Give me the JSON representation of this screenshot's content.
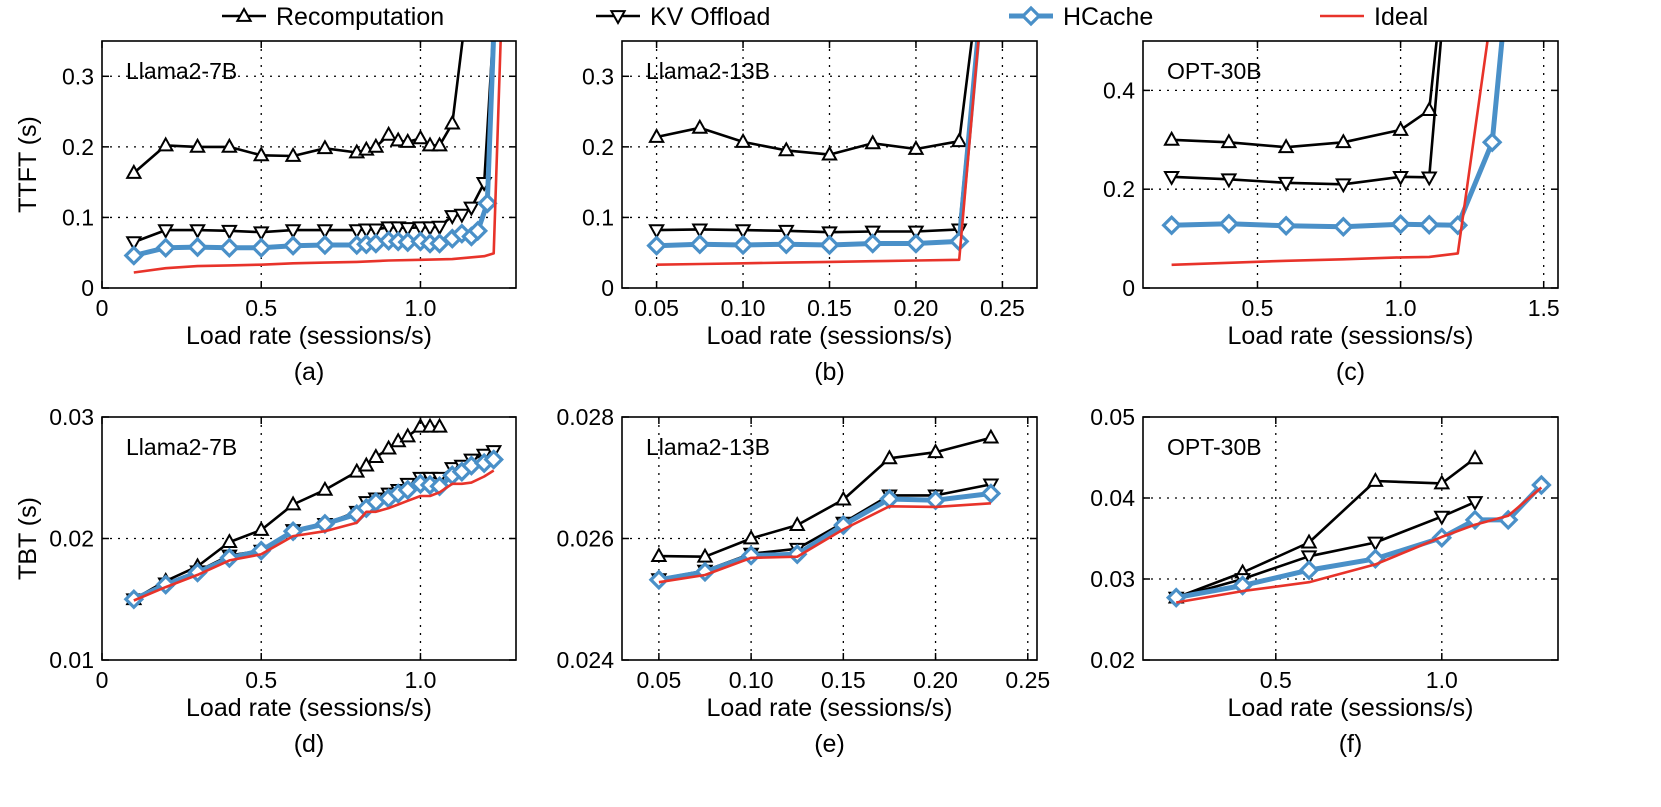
{
  "legend": {
    "entries": [
      {
        "label": "Recomputation",
        "color": "#000000",
        "marker": "triangle-up"
      },
      {
        "label": "KV Offload",
        "color": "#000000",
        "marker": "triangle-down"
      },
      {
        "label": "HCache",
        "color": "#4a90c8",
        "marker": "diamond"
      },
      {
        "label": "Ideal",
        "color": "#e8332a",
        "marker": "none"
      }
    ],
    "placement": "top"
  },
  "chart_data": [
    {
      "type": "line",
      "caption": "(a)",
      "title": "Llama2-7B",
      "xlabel": "Load rate (sessions/s)",
      "ylabel": "TTFT (s)",
      "xlim": [
        0,
        1.3
      ],
      "ylim": [
        0,
        0.35
      ],
      "xticks": [
        "0",
        "0.5",
        "1.0"
      ],
      "xtick_values": [
        0,
        0.5,
        1.0
      ],
      "yticks": [
        "0",
        "0.1",
        "0.2",
        "0.3"
      ],
      "ytick_values": [
        0,
        0.1,
        0.2,
        0.3
      ],
      "series": [
        {
          "name": "Recomputation",
          "x": [
            0.1,
            0.2,
            0.3,
            0.4,
            0.5,
            0.6,
            0.7,
            0.8,
            0.83,
            0.86,
            0.9,
            0.93,
            0.96,
            1.0,
            1.03,
            1.06,
            1.1,
            1.2
          ],
          "y": [
            0.163,
            0.202,
            0.2,
            0.2,
            0.188,
            0.187,
            0.198,
            0.192,
            0.196,
            0.2,
            0.217,
            0.209,
            0.207,
            0.212,
            0.202,
            0.202,
            0.233,
            0.6
          ]
        },
        {
          "name": "KV Offload",
          "x": [
            0.1,
            0.2,
            0.3,
            0.4,
            0.5,
            0.6,
            0.7,
            0.8,
            0.83,
            0.86,
            0.9,
            0.93,
            0.96,
            1.0,
            1.03,
            1.06,
            1.1,
            1.13,
            1.16,
            1.2,
            1.26
          ],
          "y": [
            0.065,
            0.082,
            0.082,
            0.081,
            0.079,
            0.082,
            0.082,
            0.082,
            0.083,
            0.083,
            0.086,
            0.086,
            0.085,
            0.086,
            0.086,
            0.087,
            0.102,
            0.104,
            0.114,
            0.149,
            0.6
          ]
        },
        {
          "name": "HCache",
          "x": [
            0.1,
            0.2,
            0.3,
            0.4,
            0.5,
            0.6,
            0.7,
            0.8,
            0.83,
            0.86,
            0.9,
            0.93,
            0.96,
            1.0,
            1.03,
            1.06,
            1.1,
            1.13,
            1.16,
            1.18,
            1.21,
            1.25
          ],
          "y": [
            0.046,
            0.057,
            0.058,
            0.057,
            0.057,
            0.06,
            0.061,
            0.061,
            0.062,
            0.063,
            0.067,
            0.066,
            0.065,
            0.066,
            0.063,
            0.063,
            0.07,
            0.077,
            0.073,
            0.081,
            0.12,
            0.6
          ]
        },
        {
          "name": "Ideal",
          "x": [
            0.1,
            0.2,
            0.3,
            0.4,
            0.5,
            0.6,
            0.7,
            0.8,
            0.9,
            1.0,
            1.1,
            1.2,
            1.23,
            1.27
          ],
          "y": [
            0.022,
            0.028,
            0.031,
            0.032,
            0.033,
            0.035,
            0.036,
            0.037,
            0.039,
            0.04,
            0.041,
            0.045,
            0.049,
            0.6
          ]
        }
      ]
    },
    {
      "type": "line",
      "caption": "(b)",
      "title": "Llama2-13B",
      "xlabel": "Load rate (sessions/s)",
      "ylabel": "",
      "xlim": [
        0.03,
        0.27
      ],
      "ylim": [
        0,
        0.35
      ],
      "xticks": [
        "0.05",
        "0.10",
        "0.15",
        "0.20",
        "0.25"
      ],
      "xtick_values": [
        0.05,
        0.1,
        0.15,
        0.2,
        0.25
      ],
      "yticks": [
        "0",
        "0.1",
        "0.2",
        "0.3"
      ],
      "ytick_values": [
        0,
        0.1,
        0.2,
        0.3
      ],
      "series": [
        {
          "name": "Recomputation",
          "x": [
            0.05,
            0.075,
            0.1,
            0.125,
            0.15,
            0.175,
            0.2,
            0.225,
            0.245
          ],
          "y": [
            0.214,
            0.227,
            0.207,
            0.195,
            0.189,
            0.205,
            0.197,
            0.208,
            0.6
          ]
        },
        {
          "name": "KV Offload",
          "x": [
            0.05,
            0.075,
            0.1,
            0.125,
            0.15,
            0.175,
            0.2,
            0.225,
            0.245
          ],
          "y": [
            0.082,
            0.083,
            0.082,
            0.081,
            0.079,
            0.08,
            0.08,
            0.083,
            0.6
          ]
        },
        {
          "name": "HCache",
          "x": [
            0.05,
            0.075,
            0.1,
            0.125,
            0.15,
            0.175,
            0.2,
            0.225,
            0.245
          ],
          "y": [
            0.06,
            0.062,
            0.061,
            0.062,
            0.061,
            0.063,
            0.063,
            0.066,
            0.6
          ]
        },
        {
          "name": "Ideal",
          "x": [
            0.05,
            0.075,
            0.1,
            0.125,
            0.15,
            0.175,
            0.2,
            0.225,
            0.245
          ],
          "y": [
            0.033,
            0.034,
            0.035,
            0.036,
            0.037,
            0.038,
            0.039,
            0.04,
            0.6
          ]
        }
      ]
    },
    {
      "type": "line",
      "caption": "(c)",
      "title": "OPT-30B",
      "xlabel": "Load rate (sessions/s)",
      "ylabel": "",
      "xlim": [
        0.1,
        1.55
      ],
      "ylim": [
        0,
        0.5
      ],
      "xticks": [
        "0.5",
        "1.0",
        "1.5"
      ],
      "xtick_values": [
        0.5,
        1.0,
        1.5
      ],
      "yticks": [
        "0",
        "0.2",
        "0.4"
      ],
      "ytick_values": [
        0,
        0.2,
        0.4
      ],
      "series": [
        {
          "name": "Recomputation",
          "x": [
            0.2,
            0.4,
            0.6,
            0.8,
            1.0,
            1.1,
            1.2
          ],
          "y": [
            0.3,
            0.295,
            0.285,
            0.295,
            0.32,
            0.36,
            0.9
          ]
        },
        {
          "name": "KV Offload",
          "x": [
            0.2,
            0.4,
            0.6,
            0.8,
            1.0,
            1.1,
            1.2
          ],
          "y": [
            0.225,
            0.22,
            0.213,
            0.21,
            0.225,
            0.224,
            0.9
          ]
        },
        {
          "name": "HCache",
          "x": [
            0.2,
            0.4,
            0.6,
            0.8,
            1.0,
            1.1,
            1.2,
            1.32,
            1.42
          ],
          "y": [
            0.127,
            0.13,
            0.126,
            0.124,
            0.129,
            0.128,
            0.127,
            0.295,
            0.9
          ]
        },
        {
          "name": "Ideal",
          "x": [
            0.2,
            0.4,
            0.6,
            0.8,
            1.0,
            1.1,
            1.2,
            1.4
          ],
          "y": [
            0.047,
            0.051,
            0.055,
            0.058,
            0.062,
            0.063,
            0.07,
            0.9
          ]
        }
      ]
    },
    {
      "type": "line",
      "caption": "(d)",
      "title": "Llama2-7B",
      "xlabel": "Load rate (sessions/s)",
      "ylabel": "TBT (s)",
      "xlim": [
        0,
        1.3
      ],
      "ylim": [
        0.01,
        0.03
      ],
      "xticks": [
        "0",
        "0.5",
        "1.0"
      ],
      "xtick_values": [
        0,
        0.5,
        1.0
      ],
      "yticks": [
        "0.01",
        "0.02",
        "0.03"
      ],
      "ytick_values": [
        0.01,
        0.02,
        0.03
      ],
      "series": [
        {
          "name": "Recomputation",
          "x": [
            0.1,
            0.2,
            0.3,
            0.4,
            0.5,
            0.6,
            0.7,
            0.8,
            0.83,
            0.86,
            0.9,
            0.93,
            0.96,
            1.0,
            1.03,
            1.06
          ],
          "y": [
            0.015,
            0.0165,
            0.0177,
            0.0197,
            0.0207,
            0.0228,
            0.024,
            0.0255,
            0.026,
            0.0267,
            0.0274,
            0.028,
            0.0284,
            0.0292,
            0.0292,
            0.0292
          ]
        },
        {
          "name": "KV Offload",
          "x": [
            0.1,
            0.2,
            0.3,
            0.4,
            0.5,
            0.6,
            0.7,
            0.8,
            0.83,
            0.86,
            0.9,
            0.93,
            0.96,
            1.0,
            1.03,
            1.06,
            1.1,
            1.13,
            1.16,
            1.2,
            1.23
          ],
          "y": [
            0.015,
            0.0163,
            0.0173,
            0.0186,
            0.019,
            0.0207,
            0.0212,
            0.0222,
            0.023,
            0.0233,
            0.0237,
            0.024,
            0.0245,
            0.025,
            0.025,
            0.025,
            0.0258,
            0.026,
            0.0265,
            0.0269,
            0.0272
          ]
        },
        {
          "name": "HCache",
          "x": [
            0.1,
            0.2,
            0.3,
            0.4,
            0.5,
            0.6,
            0.7,
            0.8,
            0.83,
            0.86,
            0.9,
            0.93,
            0.96,
            1.0,
            1.03,
            1.06,
            1.1,
            1.13,
            1.16,
            1.2,
            1.23
          ],
          "y": [
            0.015,
            0.0162,
            0.0172,
            0.0184,
            0.019,
            0.0206,
            0.0212,
            0.022,
            0.0225,
            0.023,
            0.0233,
            0.0237,
            0.024,
            0.0245,
            0.0244,
            0.0243,
            0.0252,
            0.0255,
            0.026,
            0.0262,
            0.0265
          ]
        },
        {
          "name": "Ideal",
          "x": [
            0.1,
            0.2,
            0.3,
            0.4,
            0.5,
            0.6,
            0.7,
            0.8,
            0.83,
            0.86,
            0.9,
            0.93,
            0.96,
            1.0,
            1.03,
            1.06,
            1.1,
            1.13,
            1.16,
            1.2,
            1.23
          ],
          "y": [
            0.0149,
            0.016,
            0.017,
            0.0182,
            0.0187,
            0.0202,
            0.0206,
            0.0213,
            0.0222,
            0.0222,
            0.0225,
            0.0228,
            0.0231,
            0.0235,
            0.0235,
            0.0238,
            0.0245,
            0.0245,
            0.0246,
            0.0251,
            0.0256
          ]
        }
      ]
    },
    {
      "type": "line",
      "caption": "(e)",
      "title": "Llama2-13B",
      "xlabel": "Load rate (sessions/s)",
      "ylabel": "",
      "xlim": [
        0.03,
        0.255
      ],
      "ylim": [
        0.024,
        0.028
      ],
      "xticks": [
        "0.05",
        "0.10",
        "0.15",
        "0.20",
        "0.25"
      ],
      "xtick_values": [
        0.05,
        0.1,
        0.15,
        0.2,
        0.25
      ],
      "yticks": [
        "0.024",
        "0.026",
        "0.028"
      ],
      "ytick_values": [
        0.024,
        0.026,
        0.028
      ],
      "series": [
        {
          "name": "Recomputation",
          "x": [
            0.05,
            0.075,
            0.1,
            0.125,
            0.15,
            0.175,
            0.2,
            0.23
          ],
          "y": [
            0.02571,
            0.0257,
            0.026,
            0.02622,
            0.02664,
            0.02732,
            0.02742,
            0.02766
          ]
        },
        {
          "name": "KV Offload",
          "x": [
            0.05,
            0.075,
            0.1,
            0.125,
            0.15,
            0.175,
            0.2,
            0.23
          ],
          "y": [
            0.02533,
            0.02547,
            0.02575,
            0.02583,
            0.02626,
            0.02671,
            0.02671,
            0.02689
          ]
        },
        {
          "name": "HCache",
          "x": [
            0.05,
            0.075,
            0.1,
            0.125,
            0.15,
            0.175,
            0.2,
            0.23
          ],
          "y": [
            0.02532,
            0.02545,
            0.02572,
            0.02574,
            0.02622,
            0.02665,
            0.02663,
            0.02674
          ]
        },
        {
          "name": "Ideal",
          "x": [
            0.05,
            0.075,
            0.1,
            0.125,
            0.15,
            0.175,
            0.2,
            0.23
          ],
          "y": [
            0.02528,
            0.0254,
            0.02568,
            0.0257,
            0.02615,
            0.02653,
            0.02652,
            0.02658
          ]
        }
      ]
    },
    {
      "type": "line",
      "caption": "(f)",
      "title": "OPT-30B",
      "xlabel": "Load rate (sessions/s)",
      "ylabel": "",
      "xlim": [
        0.1,
        1.35
      ],
      "ylim": [
        0.02,
        0.05
      ],
      "xticks": [
        "0.5",
        "1.0"
      ],
      "xtick_values": [
        0.5,
        1.0
      ],
      "yticks": [
        "0.02",
        "0.03",
        "0.04",
        "0.05"
      ],
      "ytick_values": [
        0.02,
        0.03,
        0.04,
        0.05
      ],
      "series": [
        {
          "name": "Recomputation",
          "x": [
            0.2,
            0.4,
            0.6,
            0.8,
            1.0,
            1.1
          ],
          "y": [
            0.0277,
            0.0308,
            0.0345,
            0.0421,
            0.0418,
            0.0449
          ]
        },
        {
          "name": "KV Offload",
          "x": [
            0.2,
            0.4,
            0.6,
            0.8,
            1.0,
            1.1
          ],
          "y": [
            0.0277,
            0.03,
            0.0328,
            0.0345,
            0.0377,
            0.0395
          ]
        },
        {
          "name": "HCache",
          "x": [
            0.2,
            0.4,
            0.6,
            0.8,
            1.0,
            1.1,
            1.2,
            1.3
          ],
          "y": [
            0.0277,
            0.0292,
            0.0311,
            0.0325,
            0.0351,
            0.0373,
            0.0373,
            0.0416
          ]
        },
        {
          "name": "Ideal",
          "x": [
            0.2,
            0.4,
            0.6,
            0.8,
            1.0,
            1.1,
            1.2,
            1.3
          ],
          "y": [
            0.0271,
            0.0285,
            0.0296,
            0.0318,
            0.0352,
            0.0367,
            0.0378,
            0.0413
          ]
        }
      ]
    }
  ]
}
